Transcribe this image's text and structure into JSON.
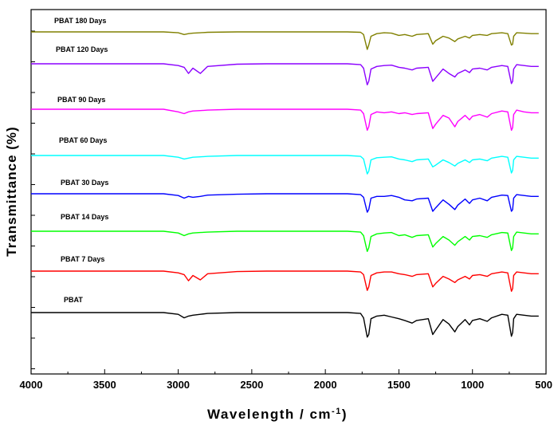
{
  "chart_data": {
    "type": "line",
    "title": "",
    "xlabel": "Wavelength / cm",
    "xlabel_superscript": "-1",
    "xlabel_suffix": ")",
    "ylabel": "Transmittance (%)",
    "xlim": [
      4000,
      500
    ],
    "x_reversed": true,
    "x_ticks": [
      4000,
      3500,
      3000,
      2500,
      2000,
      1500,
      1000,
      500
    ],
    "y_ticks_labeled": false,
    "grid": false,
    "offset_stacked": true,
    "x": [
      4000,
      3700,
      3400,
      3100,
      3000,
      2960,
      2930,
      2900,
      2850,
      2800,
      2600,
      2400,
      2200,
      2000,
      1850,
      1760,
      1740,
      1715,
      1705,
      1690,
      1650,
      1600,
      1550,
      1500,
      1460,
      1410,
      1380,
      1300,
      1270,
      1250,
      1200,
      1160,
      1120,
      1100,
      1050,
      1020,
      1000,
      950,
      900,
      870,
      800,
      760,
      735,
      727,
      720,
      700,
      650,
      600,
      550
    ],
    "series": [
      {
        "name": "PBAT 180 Days",
        "color": "#808000",
        "values": [
          0,
          0,
          0,
          0,
          -2,
          -6,
          -4,
          -3,
          -2,
          -1,
          0,
          0,
          0,
          0,
          0,
          -1,
          -6,
          -40,
          -30,
          -10,
          -4,
          -2,
          -3,
          -8,
          -6,
          -10,
          -6,
          -4,
          -28,
          -20,
          -10,
          -14,
          -22,
          -16,
          -10,
          -14,
          -8,
          -6,
          -8,
          -4,
          -2,
          -4,
          -30,
          -28,
          -10,
          -2,
          -3,
          -4,
          -4
        ]
      },
      {
        "name": "PBAT 120 Days",
        "color": "#8B00FF",
        "values": [
          0,
          0,
          0,
          0,
          -4,
          -8,
          -22,
          -10,
          -22,
          -6,
          -1,
          0,
          0,
          0,
          0,
          -2,
          -10,
          -48,
          -40,
          -12,
          -6,
          -4,
          -3,
          -8,
          -10,
          -14,
          -10,
          -8,
          -40,
          -32,
          -12,
          -22,
          -30,
          -22,
          -14,
          -20,
          -12,
          -10,
          -14,
          -8,
          -4,
          -6,
          -45,
          -40,
          -12,
          -2,
          -4,
          -6,
          -6
        ]
      },
      {
        "name": "PBAT 90 Days",
        "color": "#FF00FF",
        "values": [
          0,
          0,
          0,
          0,
          -6,
          -10,
          -6,
          -4,
          -3,
          -2,
          0,
          0,
          0,
          0,
          0,
          -2,
          -10,
          -48,
          -40,
          -12,
          -6,
          -8,
          -6,
          -10,
          -8,
          -12,
          -10,
          -8,
          -44,
          -34,
          -14,
          -20,
          -40,
          -28,
          -14,
          -24,
          -16,
          -12,
          -18,
          -10,
          -4,
          -6,
          -48,
          -42,
          -12,
          -2,
          -6,
          -8,
          -8
        ]
      },
      {
        "name": "PBAT 60 Days",
        "color": "#00FFFF",
        "values": [
          0,
          0,
          0,
          0,
          -4,
          -8,
          -6,
          -4,
          -3,
          -2,
          0,
          0,
          0,
          0,
          0,
          -2,
          -8,
          -42,
          -36,
          -10,
          -5,
          -4,
          -3,
          -8,
          -10,
          -14,
          -10,
          -8,
          -26,
          -22,
          -10,
          -16,
          -24,
          -18,
          -10,
          -16,
          -10,
          -8,
          -12,
          -6,
          -2,
          -4,
          -40,
          -34,
          -10,
          -2,
          -4,
          -6,
          -6
        ]
      },
      {
        "name": "PBAT 30 Days",
        "color": "#0000FF",
        "values": [
          0,
          0,
          0,
          0,
          -4,
          -10,
          -6,
          -8,
          -6,
          -3,
          -1,
          0,
          0,
          0,
          0,
          -2,
          -8,
          -42,
          -36,
          -10,
          -6,
          -6,
          -4,
          -8,
          -14,
          -16,
          -12,
          -10,
          -40,
          -32,
          -14,
          -24,
          -36,
          -26,
          -12,
          -22,
          -14,
          -10,
          -16,
          -8,
          -3,
          -4,
          -40,
          -36,
          -10,
          -2,
          -4,
          -6,
          -6
        ]
      },
      {
        "name": "PBAT 14 Days",
        "color": "#00FF00",
        "values": [
          0,
          0,
          0,
          0,
          -4,
          -10,
          -6,
          -4,
          -3,
          -2,
          0,
          0,
          0,
          0,
          0,
          -2,
          -10,
          -46,
          -38,
          -12,
          -6,
          -4,
          -3,
          -10,
          -8,
          -14,
          -10,
          -8,
          -36,
          -28,
          -12,
          -20,
          -32,
          -24,
          -12,
          -20,
          -12,
          -10,
          -14,
          -8,
          -3,
          -4,
          -44,
          -38,
          -12,
          -2,
          -4,
          -6,
          -6
        ]
      },
      {
        "name": "PBAT 7 Days",
        "color": "#FF0000",
        "values": [
          0,
          0,
          0,
          0,
          -4,
          -8,
          -22,
          -10,
          -20,
          -6,
          -1,
          0,
          0,
          0,
          0,
          -2,
          -8,
          -44,
          -36,
          -10,
          -4,
          -2,
          -2,
          -6,
          -8,
          -12,
          -8,
          -6,
          -36,
          -28,
          -12,
          -18,
          -26,
          -20,
          -12,
          -18,
          -10,
          -8,
          -12,
          -6,
          -2,
          -4,
          -46,
          -40,
          -10,
          -2,
          -4,
          -6,
          -6
        ]
      },
      {
        "name": "PBAT",
        "color": "#000000",
        "values": [
          0,
          0,
          0,
          0,
          -4,
          -12,
          -8,
          -6,
          -4,
          -2,
          0,
          0,
          0,
          0,
          0,
          -2,
          -12,
          -56,
          -50,
          -14,
          -8,
          -6,
          -10,
          -14,
          -18,
          -24,
          -18,
          -14,
          -50,
          -40,
          -16,
          -26,
          -44,
          -32,
          -16,
          -28,
          -18,
          -14,
          -20,
          -12,
          -4,
          -6,
          -54,
          -46,
          -14,
          -4,
          -6,
          -8,
          -8
        ]
      }
    ]
  }
}
